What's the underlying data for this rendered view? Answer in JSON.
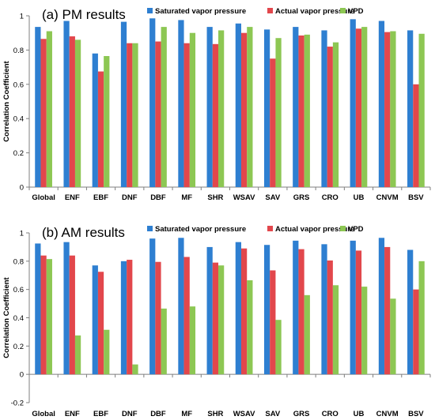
{
  "chart_data": [
    {
      "type": "bar",
      "title": "(a)  PM results",
      "ylabel": "Correlation Coefficient",
      "xlabel": "",
      "ylim": [
        0,
        1
      ],
      "yticks": [
        0,
        0.2,
        0.4,
        0.6,
        0.8,
        1
      ],
      "grid": false,
      "legend_position": "top",
      "categories": [
        "Global",
        "ENF",
        "EBF",
        "DNF",
        "DBF",
        "MF",
        "SHR",
        "WSAV",
        "SAV",
        "GRS",
        "CRO",
        "UB",
        "CNVM",
        "BSV"
      ],
      "series": [
        {
          "name": "Saturated vapor pressure",
          "color": "#2e7fd1",
          "values": [
            0.935,
            0.97,
            0.78,
            0.965,
            0.985,
            0.975,
            0.935,
            0.955,
            0.92,
            0.935,
            0.915,
            0.98,
            0.97,
            0.915
          ]
        },
        {
          "name": "Actual vapor pressure",
          "color": "#e2474c",
          "values": [
            0.865,
            0.88,
            0.675,
            0.84,
            0.85,
            0.84,
            0.835,
            0.9,
            0.75,
            0.885,
            0.82,
            0.925,
            0.905,
            0.6
          ]
        },
        {
          "name": "VPD",
          "color": "#8dc753",
          "values": [
            0.91,
            0.86,
            0.765,
            0.84,
            0.935,
            0.9,
            0.915,
            0.935,
            0.87,
            0.89,
            0.845,
            0.935,
            0.91,
            0.895
          ]
        }
      ]
    },
    {
      "type": "bar",
      "title": "(b)  AM results",
      "ylabel": "Correlation Coefficient",
      "xlabel": "",
      "ylim": [
        -0.2,
        1
      ],
      "yticks": [
        -0.2,
        0,
        0.2,
        0.4,
        0.6,
        0.8,
        1
      ],
      "grid": false,
      "legend_position": "top",
      "categories": [
        "Global",
        "ENF",
        "EBF",
        "DNF",
        "DBF",
        "MF",
        "SHR",
        "WSAV",
        "SAV",
        "GRS",
        "CRO",
        "UB",
        "CNVM",
        "BSV"
      ],
      "series": [
        {
          "name": "Saturated vapor pressure",
          "color": "#2e7fd1",
          "values": [
            0.925,
            0.935,
            0.77,
            0.8,
            0.96,
            0.965,
            0.9,
            0.935,
            0.915,
            0.945,
            0.92,
            0.945,
            0.965,
            0.88
          ]
        },
        {
          "name": "Actual vapor pressure",
          "color": "#e2474c",
          "values": [
            0.84,
            0.84,
            0.725,
            0.81,
            0.795,
            0.83,
            0.79,
            0.89,
            0.735,
            0.885,
            0.805,
            0.875,
            0.9,
            0.6
          ]
        },
        {
          "name": "VPD",
          "color": "#8dc753",
          "values": [
            0.815,
            0.275,
            0.315,
            0.07,
            0.465,
            0.48,
            0.77,
            0.665,
            0.385,
            0.56,
            0.63,
            0.62,
            0.535,
            0.8
          ]
        }
      ]
    }
  ]
}
